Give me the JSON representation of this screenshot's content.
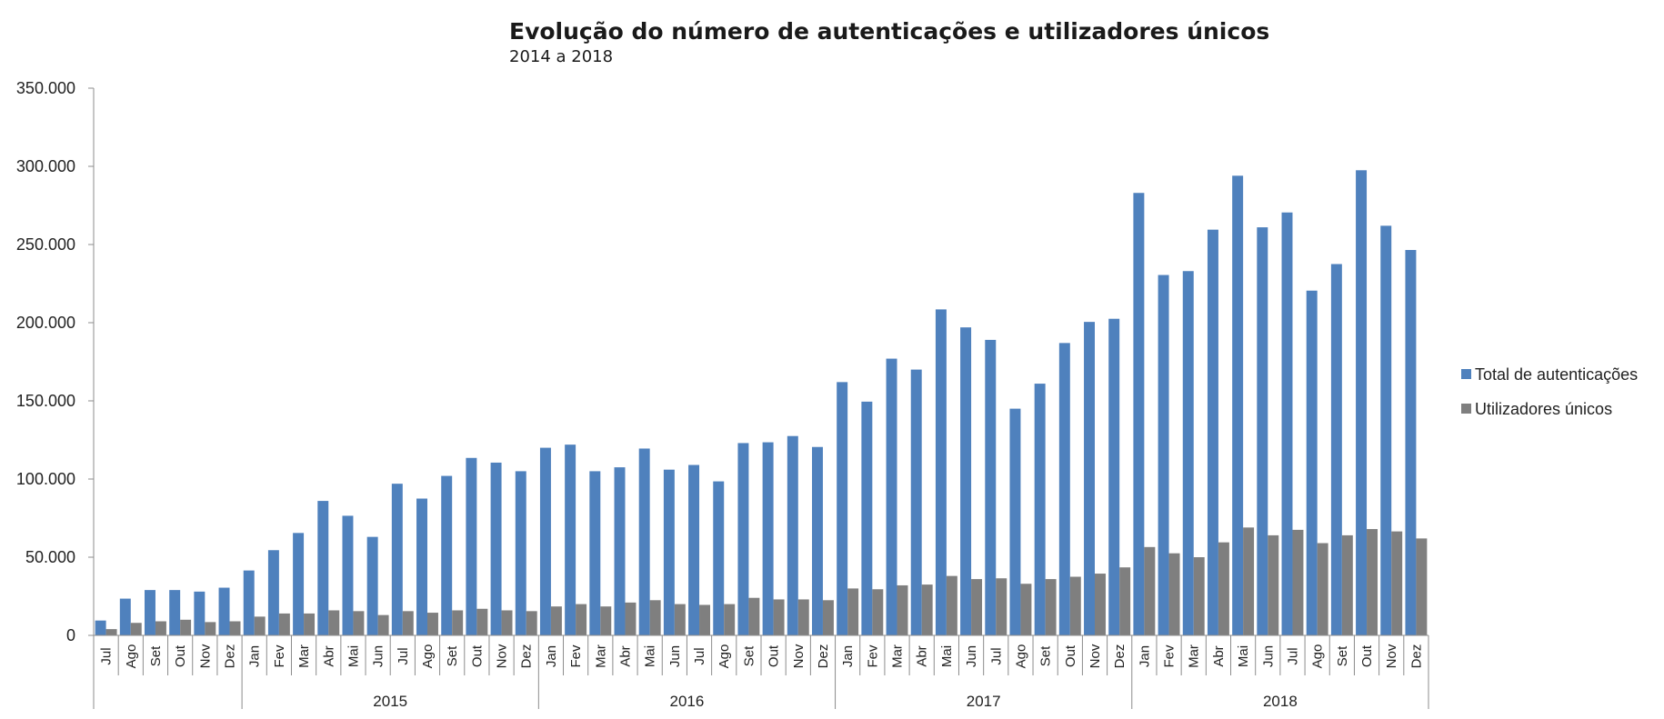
{
  "chart_data": {
    "type": "bar",
    "title": "Evolução do número de autenticações e utilizadores únicos",
    "subtitle": "2014 a 2018",
    "ylim": [
      0,
      350000
    ],
    "yticks": [
      "0",
      "50.000",
      "100.000",
      "150.000",
      "200.000",
      "250.000",
      "300.000",
      "350.000"
    ],
    "grid": false,
    "legend_position": "right",
    "colors": {
      "Total de autenticações": "#4f81bd",
      "Utilizadores únicos": "#7f7f7f"
    },
    "categories": [
      "Jul",
      "Ago",
      "Set",
      "Out",
      "Nov",
      "Dez",
      "Jan",
      "Fev",
      "Mar",
      "Abr",
      "Mai",
      "Jun",
      "Jul",
      "Ago",
      "Set",
      "Out",
      "Nov",
      "Dez",
      "Jan",
      "Fev",
      "Mar",
      "Abr",
      "Mai",
      "Jun",
      "Jul",
      "Ago",
      "Set",
      "Out",
      "Nov",
      "Dez",
      "Jan",
      "Fev",
      "Mar",
      "Abr",
      "Mai",
      "Jun",
      "Jul",
      "Ago",
      "Set",
      "Out",
      "Nov",
      "Dez",
      "Jan",
      "Fev",
      "Mar",
      "Abr",
      "Mai",
      "Jun",
      "Jul",
      "Ago",
      "Set",
      "Out",
      "Nov",
      "Dez"
    ],
    "groups": [
      {
        "label": "",
        "count": 6
      },
      {
        "label": "2015",
        "count": 12
      },
      {
        "label": "2016",
        "count": 12
      },
      {
        "label": "2017",
        "count": 12
      },
      {
        "label": "2018",
        "count": 12
      }
    ],
    "series": [
      {
        "name": "Total de autenticações",
        "values": [
          9500,
          23500,
          29000,
          29000,
          28000,
          30500,
          41500,
          54500,
          65500,
          86000,
          76500,
          63000,
          97000,
          87500,
          102000,
          113500,
          110500,
          105000,
          120000,
          122000,
          105000,
          107500,
          119500,
          106000,
          109000,
          98500,
          123000,
          123500,
          127500,
          120500,
          162000,
          149500,
          177000,
          170000,
          208500,
          197000,
          189000,
          145000,
          161000,
          187000,
          200500,
          202500,
          283000,
          230500,
          233000,
          259500,
          294000,
          261000,
          270500,
          220500,
          237500,
          297500,
          262000,
          246500
        ]
      },
      {
        "name": "Utilizadores únicos",
        "values": [
          4000,
          8000,
          9000,
          10000,
          8500,
          9000,
          12000,
          14000,
          14000,
          16000,
          15500,
          13000,
          15500,
          14500,
          16000,
          17000,
          16000,
          15500,
          18500,
          20000,
          18500,
          21000,
          22500,
          20000,
          19500,
          20000,
          24000,
          23000,
          23000,
          22500,
          30000,
          29500,
          32000,
          32500,
          38000,
          36000,
          36500,
          33000,
          36000,
          37500,
          39500,
          43500,
          56500,
          52500,
          50000,
          59500,
          69000,
          64000,
          67500,
          59000,
          64000,
          68000,
          66500,
          62000
        ]
      }
    ]
  }
}
